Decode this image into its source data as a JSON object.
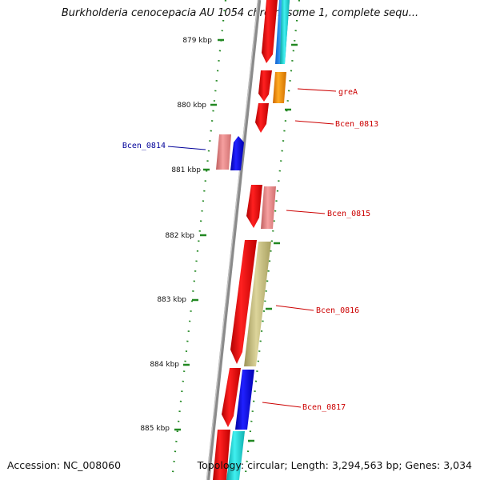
{
  "title": "Burkholderia cenocepacia AU 1054 chromosome 1, complete sequ...",
  "footer": {
    "accession": "Accession: NC_008060",
    "summary": "Topology: circular; Length: 3,294,563 bp; Genes: 3,034"
  },
  "ticks": [
    "879 kbp",
    "880 kbp",
    "881 kbp",
    "882 kbp",
    "883 kbp",
    "884 kbp",
    "885 kbp"
  ],
  "gene_labels": [
    {
      "text": "greA",
      "color": "#cc0000"
    },
    {
      "text": "Bcen_0813",
      "color": "#cc0000"
    },
    {
      "text": "Bcen_0814",
      "color": "#000099"
    },
    {
      "text": "Bcen_0815",
      "color": "#cc0000"
    },
    {
      "text": "Bcen_0816",
      "color": "#cc0000"
    },
    {
      "text": "Bcen_0817",
      "color": "#cc0000"
    }
  ],
  "colors": {
    "backbone": "#8a8a8a",
    "cds": "#ee0000",
    "cds_light": "#f08080",
    "blue": "#0000ee",
    "orange": "#ff9900",
    "olive": "#c8c080",
    "cyan": "#19d0d0",
    "skyblue": "#3399ff",
    "tick_green": "#228822",
    "label_red": "#cc0000",
    "label_blue": "#000099"
  }
}
